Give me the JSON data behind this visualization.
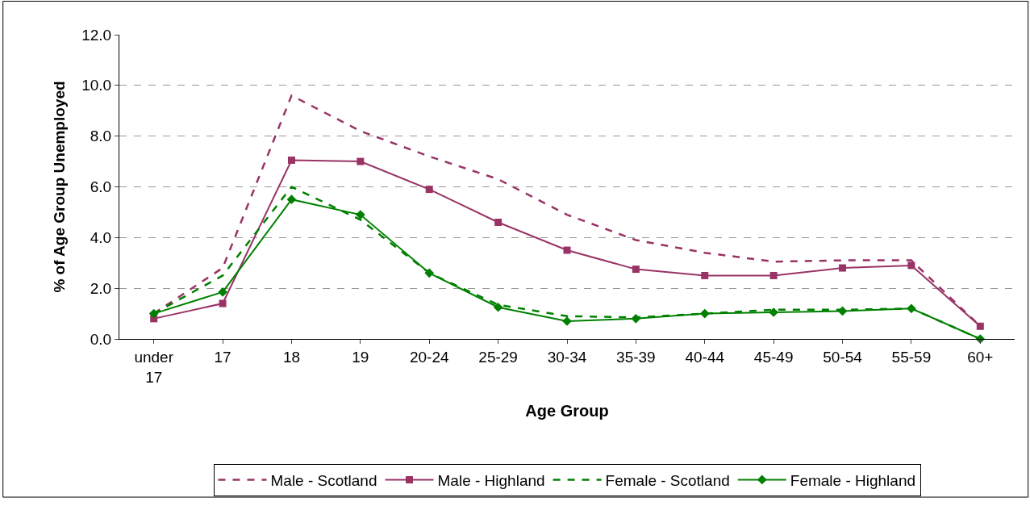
{
  "chart_data": {
    "type": "line",
    "xlabel": "Age Group",
    "ylabel": "% of Age Group Unemployed",
    "categories": [
      "under 17",
      "17",
      "18",
      "19",
      "20-24",
      "25-29",
      "30-34",
      "35-39",
      "40-44",
      "45-49",
      "50-54",
      "55-59",
      "60+"
    ],
    "series": [
      {
        "name": "Male - Scotland",
        "color": "#993366",
        "line_style": "dashed",
        "marker": "none",
        "values": [
          1.0,
          2.8,
          9.6,
          8.2,
          7.2,
          6.3,
          4.9,
          3.9,
          3.4,
          3.05,
          3.1,
          3.1,
          0.5
        ]
      },
      {
        "name": "Male - Highland",
        "color": "#993366",
        "line_style": "solid",
        "marker": "square",
        "values": [
          0.8,
          1.4,
          7.05,
          7.0,
          5.9,
          4.6,
          3.5,
          2.75,
          2.5,
          2.5,
          2.8,
          2.9,
          0.5
        ]
      },
      {
        "name": "Female - Scotland",
        "color": "#008000",
        "line_style": "dashed",
        "marker": "none",
        "values": [
          1.0,
          2.5,
          6.0,
          4.7,
          2.6,
          1.35,
          0.9,
          0.85,
          1.0,
          1.15,
          1.15,
          1.2,
          0.0
        ]
      },
      {
        "name": "Female - Highland",
        "color": "#008000",
        "line_style": "solid",
        "marker": "diamond",
        "values": [
          1.0,
          1.85,
          5.5,
          4.9,
          2.6,
          1.25,
          0.7,
          0.8,
          1.0,
          1.05,
          1.1,
          1.2,
          0.0
        ]
      }
    ],
    "ylim": [
      0,
      12
    ],
    "yticks": [
      {
        "value": 0,
        "label": "0.0"
      },
      {
        "value": 2,
        "label": "2.0"
      },
      {
        "value": 4,
        "label": "4.0"
      },
      {
        "value": 6,
        "label": "6.0"
      },
      {
        "value": 8,
        "label": "8.0"
      },
      {
        "value": 10,
        "label": "10.0"
      },
      {
        "value": 12,
        "label": "12.0"
      }
    ],
    "grid": "y",
    "legend": "bottom"
  }
}
